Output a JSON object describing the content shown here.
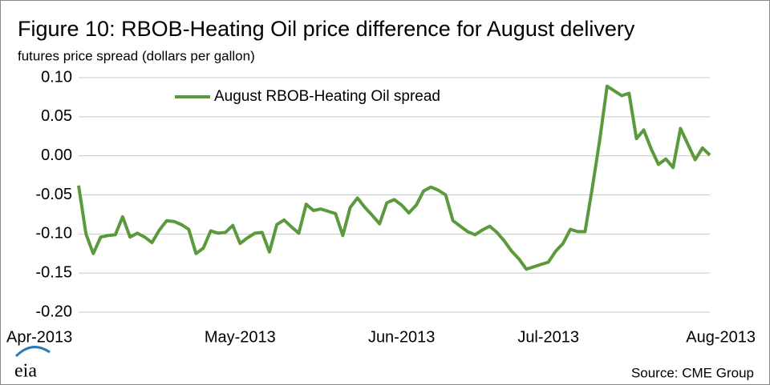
{
  "chart_data": {
    "type": "line",
    "title": "Figure 10: RBOB-Heating Oil price difference for August delivery",
    "subtitle": "futures price spread (dollars per gallon)",
    "source": "Source: CME Group",
    "logo": "eia",
    "categories": [
      "Apr-2013",
      null,
      null,
      null,
      null,
      null,
      null,
      null,
      null,
      null,
      null,
      null,
      null,
      null,
      null,
      null,
      null,
      null,
      null,
      null,
      null,
      null,
      "May-2013",
      null,
      null,
      null,
      null,
      null,
      null,
      null,
      null,
      null,
      null,
      null,
      null,
      null,
      null,
      null,
      null,
      null,
      null,
      null,
      null,
      null,
      "Jun-2013",
      null,
      null,
      null,
      null,
      null,
      null,
      null,
      null,
      null,
      null,
      null,
      null,
      null,
      null,
      null,
      null,
      null,
      null,
      null,
      "Jul-2013",
      null,
      null,
      null,
      null,
      null,
      null,
      null,
      null,
      null,
      null,
      null,
      null,
      null,
      null,
      null,
      null,
      null,
      null,
      null,
      null,
      null,
      "Aug-2013"
    ],
    "series": [
      {
        "name": "August RBOB-Heating Oil spread",
        "color": "#5b9a3c",
        "values": [
          -0.038,
          -0.1,
          -0.125,
          -0.104,
          -0.102,
          -0.101,
          -0.078,
          -0.104,
          -0.099,
          -0.104,
          -0.111,
          -0.095,
          -0.083,
          -0.084,
          -0.088,
          -0.094,
          -0.125,
          -0.118,
          -0.096,
          -0.099,
          -0.098,
          -0.089,
          -0.112,
          -0.105,
          -0.099,
          -0.098,
          -0.123,
          -0.088,
          -0.082,
          -0.091,
          -0.099,
          -0.062,
          -0.07,
          -0.068,
          -0.071,
          -0.074,
          -0.102,
          -0.066,
          -0.054,
          -0.066,
          -0.076,
          -0.087,
          -0.06,
          -0.056,
          -0.063,
          -0.073,
          -0.063,
          -0.045,
          -0.04,
          -0.044,
          -0.05,
          -0.083,
          -0.09,
          -0.097,
          -0.101,
          -0.095,
          -0.09,
          -0.098,
          -0.109,
          -0.122,
          -0.132,
          -0.145,
          -0.142,
          -0.139,
          -0.136,
          -0.122,
          -0.112,
          -0.094,
          -0.097,
          -0.097,
          -0.04,
          0.02,
          0.089,
          0.083,
          0.077,
          0.08,
          0.022,
          0.033,
          0.009,
          -0.011,
          -0.004,
          -0.015,
          0.035,
          0.015,
          -0.005,
          0.01,
          0.001
        ]
      }
    ],
    "ylim": [
      -0.2,
      0.1
    ],
    "yticks": [
      {
        "value": 0.1,
        "label": "0.10"
      },
      0.05,
      {
        "value": 0,
        "label": "0.00"
      },
      -0.05,
      {
        "value": -0.1,
        "label": "-0.10"
      },
      -0.15,
      {
        "value": -0.2,
        "label": "-0.20"
      }
    ],
    "grid": true
  }
}
